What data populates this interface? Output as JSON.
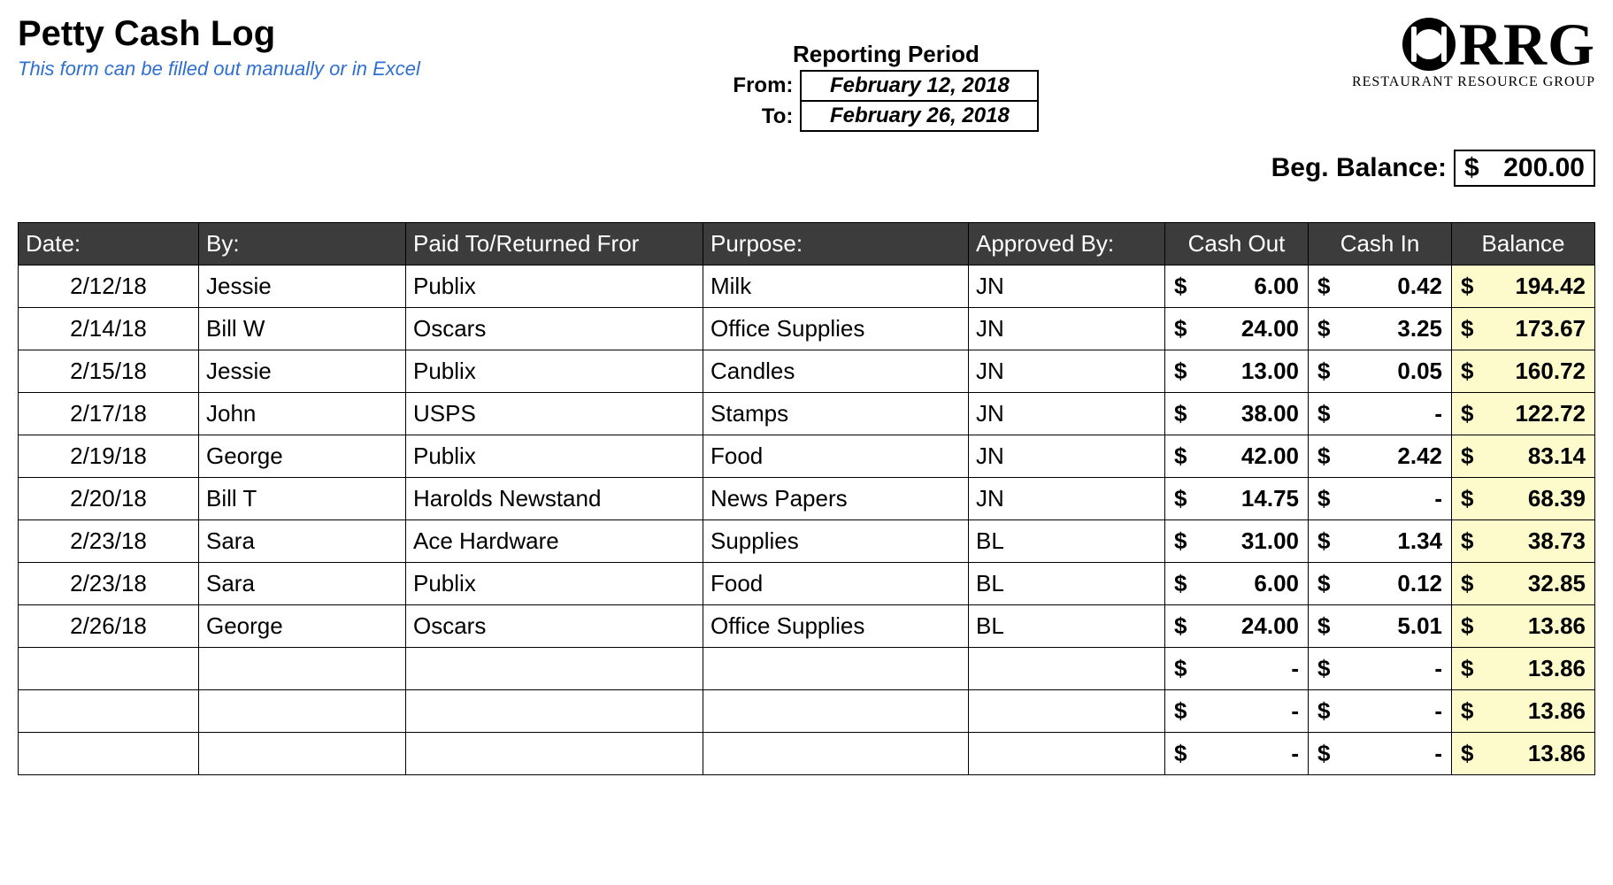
{
  "title": "Petty Cash Log",
  "subtitle": "This form can be filled out manually or in Excel",
  "reporting_period": {
    "heading": "Reporting Period",
    "from_label": "From:",
    "from_value": "February 12, 2018",
    "to_label": "To:",
    "to_value": "February 26, 2018"
  },
  "logo": {
    "text": "RRG",
    "sub": "RESTAURANT RESOURCE GROUP"
  },
  "beg_balance": {
    "label": "Beg. Balance:",
    "symbol": "$",
    "value": "200.00"
  },
  "columns": {
    "date": "Date:",
    "by": "By:",
    "paid_to": "Paid To/Returned Fror",
    "purpose": "Purpose:",
    "approved_by": "Approved By:",
    "cash_out": "Cash Out",
    "cash_in": "Cash In",
    "balance": "Balance"
  },
  "currency_symbol": "$",
  "rows": [
    {
      "date": "2/12/18",
      "by": "Jessie",
      "paid_to": "Publix",
      "purpose": "Milk",
      "approved_by": "JN",
      "cash_out": "6.00",
      "cash_in": "0.42",
      "balance": "194.42"
    },
    {
      "date": "2/14/18",
      "by": "Bill W",
      "paid_to": "Oscars",
      "purpose": "Office Supplies",
      "approved_by": "JN",
      "cash_out": "24.00",
      "cash_in": "3.25",
      "balance": "173.67"
    },
    {
      "date": "2/15/18",
      "by": "Jessie",
      "paid_to": "Publix",
      "purpose": "Candles",
      "approved_by": "JN",
      "cash_out": "13.00",
      "cash_in": "0.05",
      "balance": "160.72"
    },
    {
      "date": "2/17/18",
      "by": "John",
      "paid_to": "USPS",
      "purpose": "Stamps",
      "approved_by": "JN",
      "cash_out": "38.00",
      "cash_in": "-",
      "balance": "122.72"
    },
    {
      "date": "2/19/18",
      "by": "George",
      "paid_to": "Publix",
      "purpose": "Food",
      "approved_by": "JN",
      "cash_out": "42.00",
      "cash_in": "2.42",
      "balance": "83.14"
    },
    {
      "date": "2/20/18",
      "by": "Bill T",
      "paid_to": "Harolds Newstand",
      "purpose": "News Papers",
      "approved_by": "JN",
      "cash_out": "14.75",
      "cash_in": "-",
      "balance": "68.39"
    },
    {
      "date": "2/23/18",
      "by": "Sara",
      "paid_to": "Ace Hardware",
      "purpose": "Supplies",
      "approved_by": "BL",
      "cash_out": "31.00",
      "cash_in": "1.34",
      "balance": "38.73"
    },
    {
      "date": "2/23/18",
      "by": "Sara",
      "paid_to": "Publix",
      "purpose": "Food",
      "approved_by": "BL",
      "cash_out": "6.00",
      "cash_in": "0.12",
      "balance": "32.85"
    },
    {
      "date": "2/26/18",
      "by": "George",
      "paid_to": "Oscars",
      "purpose": "Office Supplies",
      "approved_by": "BL",
      "cash_out": "24.00",
      "cash_in": "5.01",
      "balance": "13.86"
    },
    {
      "date": "",
      "by": "",
      "paid_to": "",
      "purpose": "",
      "approved_by": "",
      "cash_out": "-",
      "cash_in": "-",
      "balance": "13.86"
    },
    {
      "date": "",
      "by": "",
      "paid_to": "",
      "purpose": "",
      "approved_by": "",
      "cash_out": "-",
      "cash_in": "-",
      "balance": "13.86"
    },
    {
      "date": "",
      "by": "",
      "paid_to": "",
      "purpose": "",
      "approved_by": "",
      "cash_out": "-",
      "cash_in": "-",
      "balance": "13.86"
    }
  ],
  "colors": {
    "header_bg": "#3c3c3c",
    "header_fg": "#ffffff",
    "balance_bg": "#fdfacb",
    "subtitle_color": "#2f6fd1",
    "border": "#000000",
    "page_bg": "#ffffff"
  }
}
